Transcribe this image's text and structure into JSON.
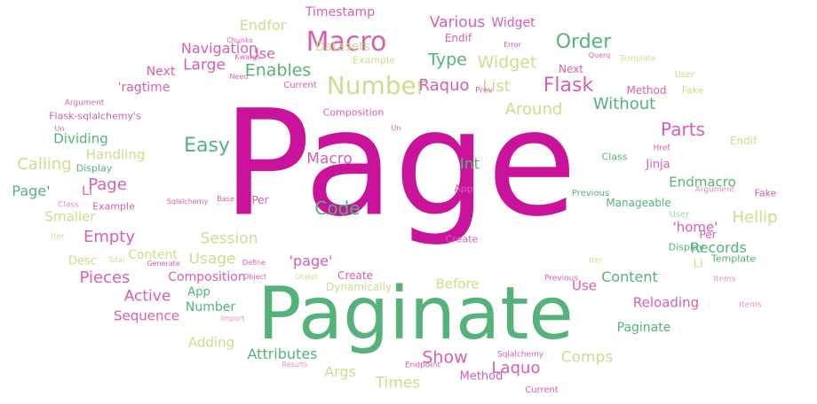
{
  "colors": {
    "c0": "#c8139a",
    "c1": "#d660b0",
    "c2": "#55b27a",
    "c3": "#cfdc8e",
    "c4": "#e28fc6",
    "c5": "#9fd3a8"
  },
  "words": [
    {
      "text": "Page",
      "size": 165,
      "color": "c0"
    },
    {
      "text": "Paginate",
      "size": 82,
      "color": "c2"
    },
    {
      "text": "Macro",
      "size": 30,
      "color": "c1"
    },
    {
      "text": "Number",
      "size": 28,
      "color": "c3"
    },
    {
      "text": "Order",
      "size": 22,
      "color": "c2"
    },
    {
      "text": "Flask",
      "size": 22,
      "color": "c1"
    },
    {
      "text": "Widget",
      "size": 19,
      "color": "c3"
    },
    {
      "text": "Type",
      "size": 19,
      "color": "c2"
    },
    {
      "text": "Raquo",
      "size": 18,
      "color": "c1"
    },
    {
      "text": "List",
      "size": 18,
      "color": "c3"
    },
    {
      "text": "Around",
      "size": 18,
      "color": "c3"
    },
    {
      "text": "Without",
      "size": 18,
      "color": "c2"
    },
    {
      "text": "Parts",
      "size": 20,
      "color": "c1"
    },
    {
      "text": "Enables",
      "size": 19,
      "color": "c2"
    },
    {
      "text": "Large",
      "size": 17,
      "color": "c1"
    },
    {
      "text": "Navigation",
      "size": 16,
      "color": "c1"
    },
    {
      "text": "Use",
      "size": 16,
      "color": "c1"
    },
    {
      "text": "Endfor",
      "size": 16,
      "color": "c3"
    },
    {
      "text": "Timestamp",
      "size": 14,
      "color": "c1"
    },
    {
      "text": "Various",
      "size": 17,
      "color": "c1"
    },
    {
      "text": "Widget",
      "size": 14,
      "color": "c1"
    },
    {
      "text": "Datasets",
      "size": 14,
      "color": "c3"
    },
    {
      "text": "Endif",
      "size": 12,
      "color": "c1"
    },
    {
      "text": "Example",
      "size": 11,
      "color": "c3"
    },
    {
      "text": "Next",
      "size": 14,
      "color": "c1"
    },
    {
      "text": "Next",
      "size": 12,
      "color": "c1"
    },
    {
      "text": "Method",
      "size": 12,
      "color": "c1"
    },
    {
      "text": "Fake",
      "size": 11,
      "color": "c3"
    },
    {
      "text": "'ragtime",
      "size": 14,
      "color": "c1"
    },
    {
      "text": "Flask-sqlalchemy's",
      "size": 11,
      "color": "c1"
    },
    {
      "text": "Dividing",
      "size": 15,
      "color": "c2"
    },
    {
      "text": "Easy",
      "size": 22,
      "color": "c2"
    },
    {
      "text": "Handling",
      "size": 15,
      "color": "c3"
    },
    {
      "text": "Calling",
      "size": 18,
      "color": "c3"
    },
    {
      "text": "Display",
      "size": 11,
      "color": "c2"
    },
    {
      "text": "Page'",
      "size": 16,
      "color": "c2"
    },
    {
      "text": "Li",
      "size": 14,
      "color": "c1"
    },
    {
      "text": "Page",
      "size": 18,
      "color": "c1"
    },
    {
      "text": "Example",
      "size": 11,
      "color": "c1"
    },
    {
      "text": "Smaller",
      "size": 15,
      "color": "c3"
    },
    {
      "text": "Empty",
      "size": 18,
      "color": "c1"
    },
    {
      "text": "Macro",
      "size": 17,
      "color": "c1"
    },
    {
      "text": "Int",
      "size": 17,
      "color": "c2"
    },
    {
      "text": "Code",
      "size": 20,
      "color": "c2"
    },
    {
      "text": "Per",
      "size": 12,
      "color": "c1"
    },
    {
      "text": "Session",
      "size": 17,
      "color": "c3"
    },
    {
      "text": "Content",
      "size": 14,
      "color": "c3"
    },
    {
      "text": "Usage",
      "size": 17,
      "color": "c3"
    },
    {
      "text": "Desc",
      "size": 13,
      "color": "c3"
    },
    {
      "text": "Pieces",
      "size": 18,
      "color": "c1"
    },
    {
      "text": "Composition",
      "size": 14,
      "color": "c1"
    },
    {
      "text": "Active",
      "size": 17,
      "color": "c1"
    },
    {
      "text": "App",
      "size": 13,
      "color": "c2"
    },
    {
      "text": "Number",
      "size": 14,
      "color": "c2"
    },
    {
      "text": "Sequence",
      "size": 15,
      "color": "c1"
    },
    {
      "text": "Adding",
      "size": 15,
      "color": "c3"
    },
    {
      "text": "Attributes",
      "size": 16,
      "color": "c2"
    },
    {
      "text": "Args",
      "size": 16,
      "color": "c3"
    },
    {
      "text": "Times",
      "size": 17,
      "color": "c3"
    },
    {
      "text": "Show",
      "size": 19,
      "color": "c1"
    },
    {
      "text": "Laquo",
      "size": 18,
      "color": "c1"
    },
    {
      "text": "Comps",
      "size": 17,
      "color": "c3"
    },
    {
      "text": "Method",
      "size": 13,
      "color": "c1"
    },
    {
      "text": "Current",
      "size": 10,
      "color": "c1"
    },
    {
      "text": "Reloading",
      "size": 15,
      "color": "c1"
    },
    {
      "text": "Paginate",
      "size": 14,
      "color": "c2"
    },
    {
      "text": "Content",
      "size": 16,
      "color": "c2"
    },
    {
      "text": "Use",
      "size": 15,
      "color": "c1"
    },
    {
      "text": "Before",
      "size": 15,
      "color": "c3"
    },
    {
      "text": "Dynamically",
      "size": 12,
      "color": "c3"
    },
    {
      "text": "'page'",
      "size": 16,
      "color": "c1"
    },
    {
      "text": "Create",
      "size": 12,
      "color": "c1"
    },
    {
      "text": "Create",
      "size": 11,
      "color": "c1"
    },
    {
      "text": "App",
      "size": 11,
      "color": "c1"
    },
    {
      "text": "Records",
      "size": 16,
      "color": "c2"
    },
    {
      "text": "Per",
      "size": 12,
      "color": "c1"
    },
    {
      "text": "'home'",
      "size": 15,
      "color": "c1"
    },
    {
      "text": "Display",
      "size": 11,
      "color": "c2"
    },
    {
      "text": "Li",
      "size": 13,
      "color": "c3"
    },
    {
      "text": "Template",
      "size": 11,
      "color": "c2"
    },
    {
      "text": "Hellip",
      "size": 18,
      "color": "c3"
    },
    {
      "text": "Manageable",
      "size": 12,
      "color": "c2"
    },
    {
      "text": "Endmacro",
      "size": 15,
      "color": "c2"
    },
    {
      "text": "Jinja",
      "size": 13,
      "color": "c1"
    },
    {
      "text": "Endif",
      "size": 12,
      "color": "c3"
    },
    {
      "text": "Class",
      "size": 11,
      "color": "c2"
    },
    {
      "text": "Previous",
      "size": 10,
      "color": "c2"
    },
    {
      "text": "Argument",
      "size": 9,
      "color": "c4"
    },
    {
      "text": "Fake",
      "size": 11,
      "color": "c1"
    },
    {
      "text": "User",
      "size": 10,
      "color": "c5"
    },
    {
      "text": "Items",
      "size": 9,
      "color": "c4"
    },
    {
      "text": "Template",
      "size": 9,
      "color": "c3"
    },
    {
      "text": "Prev",
      "size": 9,
      "color": "c1"
    },
    {
      "text": "User",
      "size": 10,
      "color": "c3"
    },
    {
      "text": "Composition",
      "size": 11,
      "color": "c1"
    },
    {
      "text": "Current",
      "size": 10,
      "color": "c1"
    },
    {
      "text": "Need",
      "size": 8,
      "color": "c1"
    },
    {
      "text": "Chunks",
      "size": 8,
      "color": "c1"
    },
    {
      "text": "Kwargs",
      "size": 8,
      "color": "c1"
    },
    {
      "text": "Argument",
      "size": 9,
      "color": "c1"
    },
    {
      "text": "Un",
      "size": 8,
      "color": "c1"
    },
    {
      "text": "Class",
      "size": 9,
      "color": "c4"
    },
    {
      "text": "Iter",
      "size": 9,
      "color": "c3"
    },
    {
      "text": "Iter",
      "size": 9,
      "color": "c3"
    },
    {
      "text": "Endpoint",
      "size": 9,
      "color": "c1"
    },
    {
      "text": "Sqlalchemy",
      "size": 9,
      "color": "c1"
    },
    {
      "text": "Previous",
      "size": 9,
      "color": "c1"
    },
    {
      "text": "Items",
      "size": 9,
      "color": "c4"
    },
    {
      "text": "Href",
      "size": 9,
      "color": "c1"
    },
    {
      "text": "Define",
      "size": 8,
      "color": "c1"
    },
    {
      "text": "Object",
      "size": 8,
      "color": "c1"
    },
    {
      "text": "Object",
      "size": 8,
      "color": "c3"
    },
    {
      "text": "Total",
      "size": 8,
      "color": "c3"
    },
    {
      "text": "Generate",
      "size": 8,
      "color": "c1"
    },
    {
      "text": "Sqlalchemy",
      "size": 8,
      "color": "c1"
    },
    {
      "text": "Base",
      "size": 8,
      "color": "c1"
    },
    {
      "text": "Error",
      "size": 8,
      "color": "c1"
    },
    {
      "text": "Querq",
      "size": 8,
      "color": "c1"
    },
    {
      "text": "Un",
      "size": 8,
      "color": "c1"
    },
    {
      "text": "Results",
      "size": 8,
      "color": "c4"
    },
    {
      "text": "Import",
      "size": 8,
      "color": "c4"
    }
  ]
}
